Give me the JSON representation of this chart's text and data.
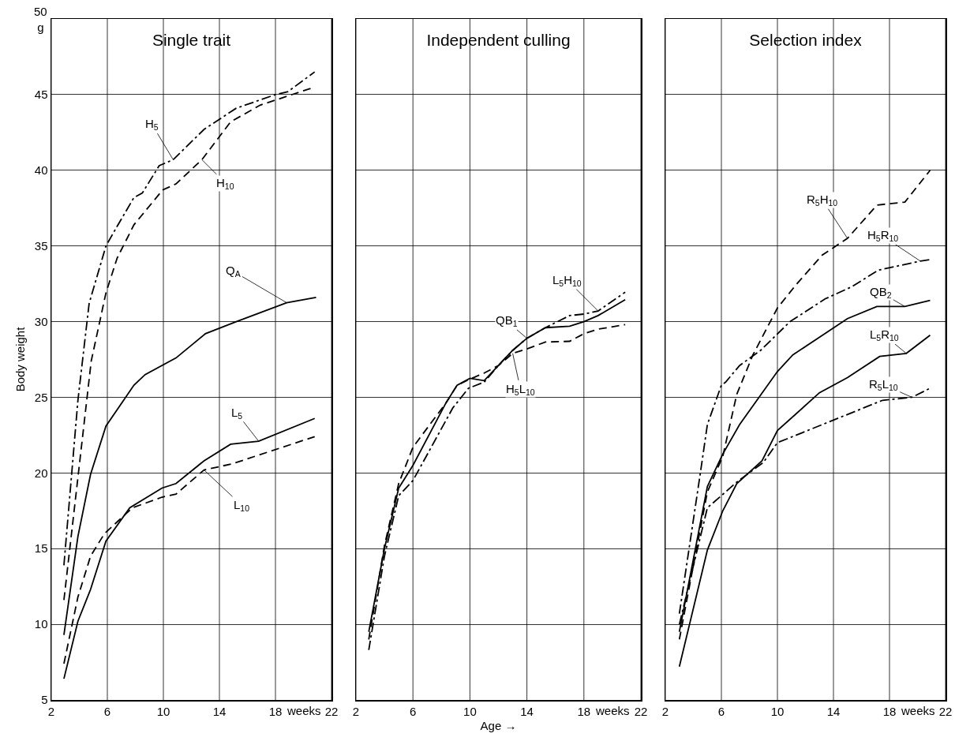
{
  "chart_data": [
    {
      "type": "line",
      "title": "Single trait",
      "ylabel": "Body weight",
      "annotations": [
        "weeks"
      ],
      "xlim": [
        2,
        22
      ],
      "xticks": [
        2,
        6,
        10,
        14,
        18,
        22
      ],
      "ylim": [
        5,
        50
      ],
      "yticks": [
        5,
        10,
        15,
        20,
        25,
        30,
        35,
        40,
        45,
        {
          "value": 50,
          "label": "50\ng"
        }
      ],
      "grid": true,
      "series": [
        {
          "name": "H$_{5}$",
          "color": "#000000",
          "line_style": "dashdot",
          "x": [
            2.9,
            3.9,
            4.7,
            5.9,
            6.7,
            7.9,
            8.5,
            9.7,
            10.7,
            12.9,
            15.2,
            18,
            18.9,
            20.8
          ],
          "values": [
            13.9,
            24.8,
            31.2,
            35,
            36.3,
            38.2,
            38.5,
            40.3,
            40.7,
            42.7,
            44.1,
            45,
            45.2,
            46.5
          ]
        },
        {
          "name": "H$_{10}$",
          "color": "#000000",
          "line_style": "dashed",
          "x": [
            2.9,
            4.85,
            5.9,
            6.7,
            7.9,
            9.95,
            10.9,
            12.75,
            14.8,
            16.9,
            20.8
          ],
          "values": [
            11.6,
            27.4,
            31.9,
            34.2,
            36.4,
            38.7,
            39.1,
            40.7,
            43.2,
            44.3,
            45.5
          ]
        },
        {
          "name": "Q$_{A}$",
          "color": "#000000",
          "line_style": "solid",
          "x": [
            2.9,
            3.9,
            4.8,
            5.9,
            7.9,
            8.7,
            10.9,
            13,
            15.2,
            18.8,
            20.9
          ],
          "values": [
            9.3,
            15.8,
            19.9,
            23.1,
            25.8,
            26.5,
            27.6,
            29.2,
            30,
            31.25,
            31.6
          ]
        },
        {
          "name": "L$_{5}$",
          "color": "#000000",
          "line_style": "solid",
          "x": [
            2.9,
            3.9,
            4.8,
            5.9,
            7.6,
            9.9,
            10.9,
            12.9,
            14.8,
            16.8,
            20.8
          ],
          "values": [
            6.4,
            10.2,
            12.3,
            15.5,
            17.7,
            19,
            19.3,
            20.8,
            21.9,
            22.1,
            23.6
          ]
        },
        {
          "name": "L$_{10}$",
          "color": "#000000",
          "line_style": "dashed",
          "x": [
            2.9,
            3.9,
            4.8,
            5.8,
            7.8,
            9.9,
            10.9,
            12.9,
            14.9,
            20.8
          ],
          "values": [
            7.4,
            11.8,
            14.5,
            16,
            17.7,
            18.4,
            18.6,
            20.2,
            20.6,
            22.4
          ]
        }
      ]
    },
    {
      "type": "line",
      "title": "Independent culling",
      "xlabel": "Age →",
      "annotations": [
        "weeks"
      ],
      "xlim": [
        2,
        22
      ],
      "xticks": [
        2,
        6,
        10,
        14,
        18,
        22
      ],
      "ylim": [
        5,
        50
      ],
      "yticks": [
        5,
        10,
        15,
        20,
        25,
        30,
        35,
        40,
        45,
        50
      ],
      "grid": true,
      "tick_labels": "x",
      "series": [
        {
          "name": "L$_{5}$H$_{10}$",
          "color": "#000000",
          "line_style": "dashdot",
          "x": [
            2.9,
            4,
            5,
            6,
            8.8,
            9.9,
            11,
            12,
            13,
            14,
            15.3,
            17,
            18,
            19,
            20.9
          ],
          "values": [
            8.3,
            14.5,
            18.5,
            19.5,
            24.3,
            25.6,
            26,
            27.1,
            28.1,
            28.9,
            29.6,
            30.4,
            30.5,
            30.7,
            31.95
          ]
        },
        {
          "name": "QB$_{1}$",
          "color": "#000000",
          "line_style": "solid",
          "x": [
            2.9,
            4,
            5,
            6,
            8.3,
            9.1,
            10,
            11,
            12,
            13,
            14,
            15.3,
            17,
            18,
            19,
            20.9
          ],
          "values": [
            9.5,
            15,
            19,
            20.5,
            24.6,
            25.8,
            26.25,
            26.1,
            27.1,
            28.1,
            28.9,
            29.6,
            29.7,
            30,
            30.4,
            31.45
          ]
        },
        {
          "name": "H$_{5}$L$_{10}$",
          "color": "#000000",
          "line_style": "dashed",
          "x": [
            2.9,
            4,
            5,
            6,
            8.3,
            9.1,
            10,
            11,
            12,
            13,
            14,
            15.3,
            17,
            18,
            19,
            20.9
          ],
          "values": [
            9,
            15.2,
            19.3,
            21.7,
            24.6,
            25.8,
            26.2,
            26.6,
            27.1,
            27.9,
            28.2,
            28.65,
            28.7,
            29.2,
            29.5,
            29.8
          ]
        }
      ]
    },
    {
      "type": "line",
      "title": "Selection index",
      "annotations": [
        "weeks"
      ],
      "xlim": [
        2,
        22
      ],
      "xticks": [
        2,
        6,
        10,
        14,
        18,
        22
      ],
      "ylim": [
        5,
        50
      ],
      "yticks": [
        5,
        10,
        15,
        20,
        25,
        30,
        35,
        40,
        45,
        50
      ],
      "grid": true,
      "tick_labels": "x",
      "series": [
        {
          "name": "R$_{5}$H$_{10}$",
          "color": "#000000",
          "line_style": "dashed",
          "x": [
            3,
            5,
            6.1,
            7.1,
            8.25,
            10,
            11.3,
            13.2,
            15,
            17.1,
            19.1,
            20.9
          ],
          "values": [
            9,
            18.75,
            21.1,
            25.2,
            27.8,
            30.9,
            32.4,
            34.4,
            35.5,
            37.7,
            37.9,
            40
          ]
        },
        {
          "name": "H$_{5}$R$_{10}$",
          "color": "#000000",
          "line_style": "dashdot",
          "x": [
            3,
            4.5,
            5,
            6,
            6.3,
            7.3,
            8.8,
            10.9,
            13.4,
            15.3,
            17.2,
            20.2,
            20.9
          ],
          "values": [
            10.7,
            20,
            23.2,
            25.8,
            26,
            27.1,
            28.1,
            30,
            31.5,
            32.3,
            33.4,
            34,
            34.1
          ]
        },
        {
          "name": "QB$_{2}$",
          "color": "#000000",
          "line_style": "solid",
          "x": [
            3,
            5,
            6.1,
            7.3,
            10,
            11.1,
            15,
            17.1,
            19.1,
            20.9
          ],
          "values": [
            9.5,
            19.1,
            21.25,
            23.2,
            26.7,
            27.8,
            30.2,
            31,
            31,
            31.4
          ]
        },
        {
          "name": "L$_{5}$R$_{10}$",
          "color": "#000000",
          "line_style": "solid",
          "x": [
            3,
            5,
            6.1,
            7.1,
            8.9,
            10,
            13,
            15,
            17.3,
            19.2,
            20.9
          ],
          "values": [
            7.2,
            14.9,
            17.5,
            19.3,
            20.8,
            22.8,
            25.3,
            26.3,
            27.7,
            27.9,
            29.1
          ]
        },
        {
          "name": "R$_{5}$L$_{10}$",
          "color": "#000000",
          "line_style": "dashdot",
          "x": [
            3,
            5,
            6,
            7.1,
            9,
            10,
            17.5,
            19.6,
            20.9
          ],
          "values": [
            10,
            17.7,
            18.5,
            19.4,
            20.7,
            22,
            24.8,
            25,
            25.6
          ]
        }
      ]
    }
  ]
}
